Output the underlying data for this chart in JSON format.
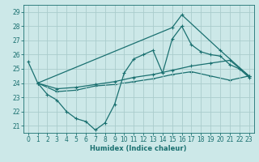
{
  "xlabel": "Humidex (Indice chaleur)",
  "bg_color": "#cce8e8",
  "grid_color": "#aacccc",
  "line_color": "#1a7070",
  "ylim": [
    20.5,
    29.5
  ],
  "xlim": [
    -0.5,
    23.5
  ],
  "yticks": [
    21,
    22,
    23,
    24,
    25,
    26,
    27,
    28,
    29
  ],
  "xticks": [
    0,
    1,
    2,
    3,
    4,
    5,
    6,
    7,
    8,
    9,
    10,
    11,
    12,
    13,
    14,
    15,
    16,
    17,
    18,
    19,
    20,
    21,
    22,
    23
  ],
  "curve1_x": [
    0,
    1,
    2,
    3,
    4,
    5,
    6,
    7,
    8,
    9,
    10,
    11,
    12,
    13,
    14,
    15,
    16,
    17,
    18,
    19,
    20,
    21,
    22,
    23
  ],
  "curve1_y": [
    25.5,
    24.0,
    23.2,
    22.8,
    22.0,
    21.5,
    21.3,
    20.7,
    21.2,
    22.5,
    24.7,
    25.7,
    26.0,
    26.3,
    24.7,
    27.1,
    28.0,
    26.7,
    26.2,
    26.0,
    25.9,
    25.3,
    25.0,
    24.4
  ],
  "curve2_x": [
    1,
    15,
    16,
    20,
    23
  ],
  "curve2_y": [
    24.0,
    27.9,
    28.8,
    26.3,
    24.5
  ],
  "curve3_x": [
    1,
    3,
    5,
    7,
    9,
    11,
    13,
    15,
    17,
    19,
    21,
    23
  ],
  "curve3_y": [
    24.0,
    23.6,
    23.7,
    23.9,
    24.1,
    24.4,
    24.6,
    24.9,
    25.2,
    25.4,
    25.6,
    24.5
  ],
  "curve4_x": [
    1,
    3,
    5,
    7,
    9,
    11,
    13,
    15,
    17,
    19,
    21,
    23
  ],
  "curve4_y": [
    24.0,
    23.4,
    23.5,
    23.8,
    23.9,
    24.1,
    24.3,
    24.6,
    24.8,
    24.5,
    24.2,
    24.5
  ]
}
